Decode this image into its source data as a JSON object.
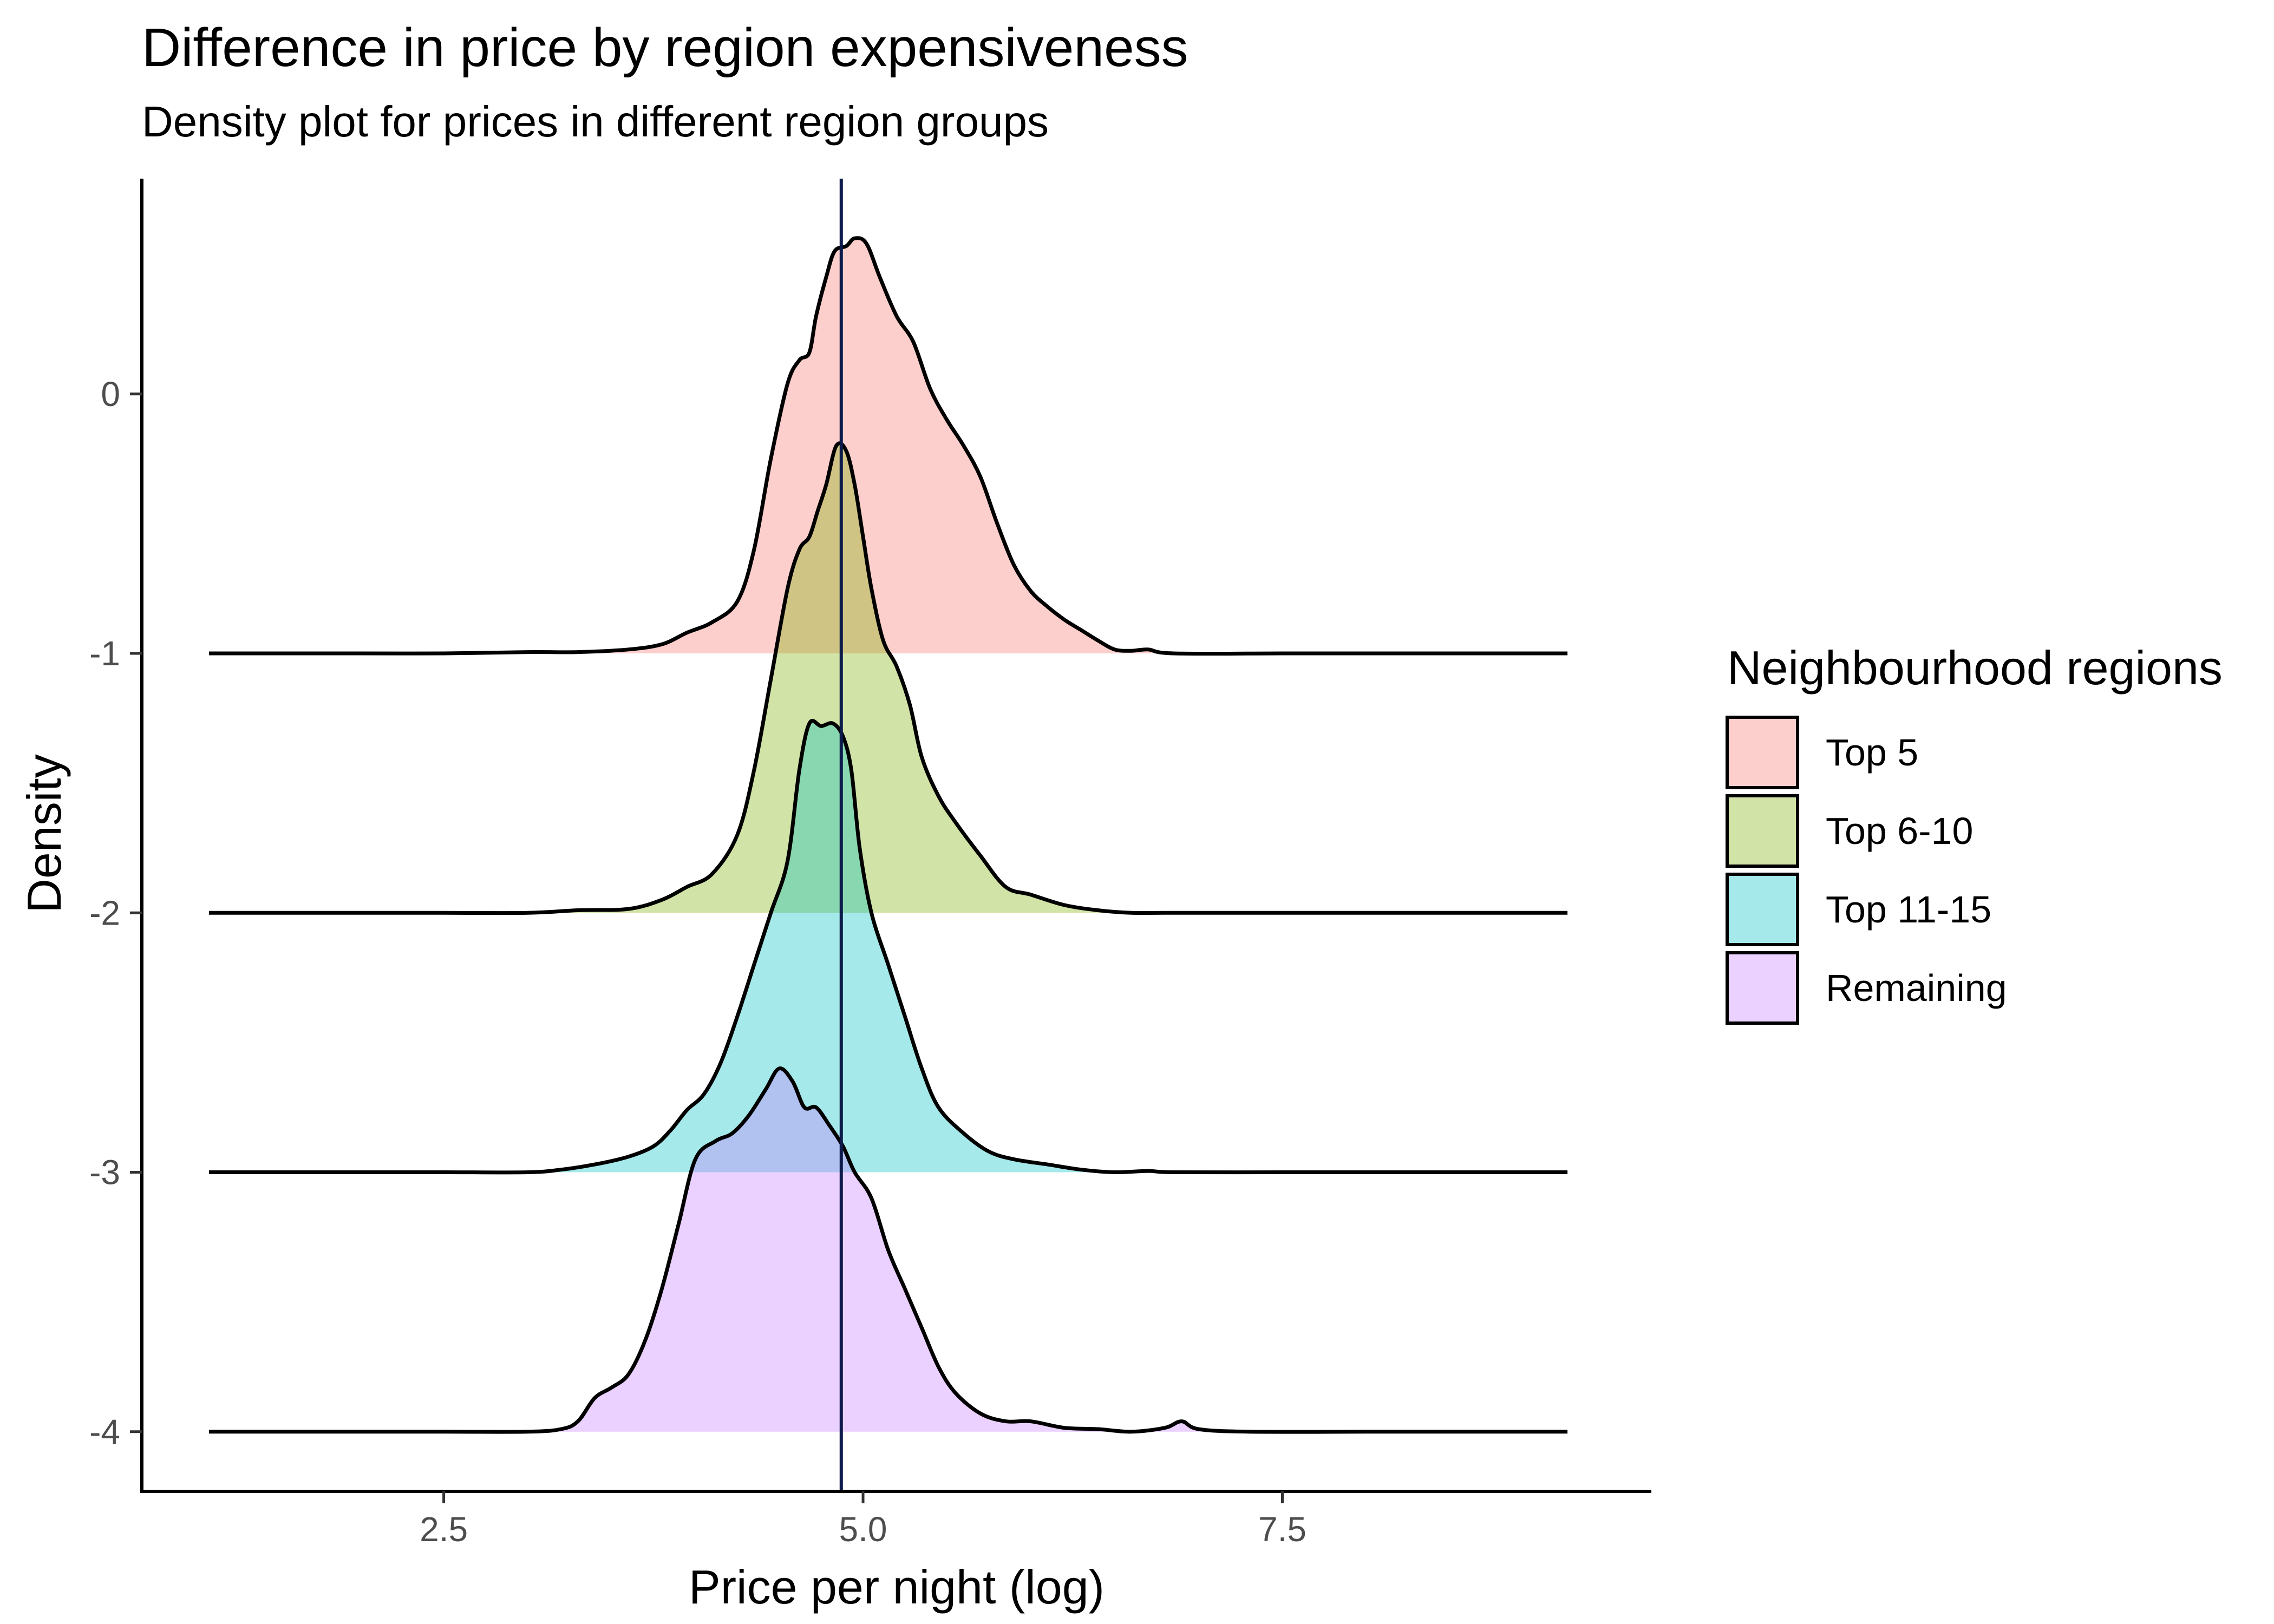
{
  "chart_data": {
    "type": "area",
    "subtype": "ridgeline-density",
    "title": "Difference in price by region expensiveness",
    "subtitle": "Density plot for prices in different region groups",
    "xlabel": "Price per night (log)",
    "ylabel": "Density",
    "xlim": [
      0.7,
      9.7
    ],
    "ylim": [
      -4.23,
      0.83
    ],
    "x_ticks": [
      2.5,
      5.0,
      7.5
    ],
    "x_tick_labels": [
      "2.5",
      "5.0",
      "7.5"
    ],
    "y_ticks": [
      0,
      -1,
      -2,
      -3,
      -4
    ],
    "y_tick_labels": [
      "0",
      "-1",
      "-2",
      "-3",
      "-4"
    ],
    "grid": false,
    "legend_position": "right",
    "legend_title": "Neighbourhood regions",
    "reference_line": {
      "orientation": "vertical",
      "x": 4.87,
      "color": "#0b1a4a"
    },
    "series": [
      {
        "name": "Top 5",
        "baseline": -1,
        "color": "#F8766D",
        "points": [
          [
            1.1,
            -1.0
          ],
          [
            1.5,
            -1.0
          ],
          [
            2.0,
            -1.0
          ],
          [
            2.5,
            -1.0
          ],
          [
            3.0,
            -0.995
          ],
          [
            3.3,
            -0.995
          ],
          [
            3.6,
            -0.985
          ],
          [
            3.8,
            -0.965
          ],
          [
            3.95,
            -0.92
          ],
          [
            4.1,
            -0.88
          ],
          [
            4.25,
            -0.8
          ],
          [
            4.35,
            -0.6
          ],
          [
            4.45,
            -0.25
          ],
          [
            4.55,
            0.04
          ],
          [
            4.62,
            0.13
          ],
          [
            4.68,
            0.16
          ],
          [
            4.72,
            0.3
          ],
          [
            4.78,
            0.45
          ],
          [
            4.83,
            0.55
          ],
          [
            4.9,
            0.57
          ],
          [
            4.95,
            0.6
          ],
          [
            5.02,
            0.58
          ],
          [
            5.1,
            0.45
          ],
          [
            5.2,
            0.3
          ],
          [
            5.3,
            0.2
          ],
          [
            5.4,
            0.02
          ],
          [
            5.5,
            -0.1
          ],
          [
            5.6,
            -0.2
          ],
          [
            5.7,
            -0.32
          ],
          [
            5.8,
            -0.5
          ],
          [
            5.9,
            -0.66
          ],
          [
            6.0,
            -0.76
          ],
          [
            6.1,
            -0.82
          ],
          [
            6.2,
            -0.87
          ],
          [
            6.3,
            -0.91
          ],
          [
            6.4,
            -0.95
          ],
          [
            6.5,
            -0.985
          ],
          [
            6.6,
            -0.99
          ],
          [
            6.7,
            -0.985
          ],
          [
            6.85,
            -1.0
          ],
          [
            7.5,
            -1.0
          ],
          [
            8.0,
            -1.0
          ],
          [
            8.5,
            -1.0
          ],
          [
            9.2,
            -1.0
          ]
        ]
      },
      {
        "name": "Top 6-10",
        "baseline": -2,
        "color": "#7CAE00",
        "points": [
          [
            1.1,
            -2.0
          ],
          [
            1.5,
            -2.0
          ],
          [
            2.0,
            -2.0
          ],
          [
            2.5,
            -2.0
          ],
          [
            3.0,
            -2.0
          ],
          [
            3.3,
            -1.99
          ],
          [
            3.6,
            -1.985
          ],
          [
            3.8,
            -1.95
          ],
          [
            3.95,
            -1.9
          ],
          [
            4.1,
            -1.85
          ],
          [
            4.25,
            -1.7
          ],
          [
            4.35,
            -1.45
          ],
          [
            4.45,
            -1.1
          ],
          [
            4.55,
            -0.75
          ],
          [
            4.62,
            -0.6
          ],
          [
            4.68,
            -0.55
          ],
          [
            4.73,
            -0.45
          ],
          [
            4.78,
            -0.35
          ],
          [
            4.84,
            -0.2
          ],
          [
            4.9,
            -0.22
          ],
          [
            4.95,
            -0.35
          ],
          [
            5.0,
            -0.55
          ],
          [
            5.05,
            -0.75
          ],
          [
            5.12,
            -0.95
          ],
          [
            5.2,
            -1.05
          ],
          [
            5.28,
            -1.2
          ],
          [
            5.35,
            -1.4
          ],
          [
            5.45,
            -1.55
          ],
          [
            5.55,
            -1.65
          ],
          [
            5.7,
            -1.78
          ],
          [
            5.85,
            -1.9
          ],
          [
            6.0,
            -1.93
          ],
          [
            6.2,
            -1.97
          ],
          [
            6.4,
            -1.99
          ],
          [
            6.6,
            -2.0
          ],
          [
            6.8,
            -2.0
          ],
          [
            7.5,
            -2.0
          ],
          [
            8.0,
            -2.0
          ],
          [
            8.5,
            -2.0
          ],
          [
            9.2,
            -2.0
          ]
        ]
      },
      {
        "name": "Top 11-15",
        "baseline": -3,
        "color": "#00BFC4",
        "points": [
          [
            1.1,
            -3.0
          ],
          [
            1.5,
            -3.0
          ],
          [
            2.0,
            -3.0
          ],
          [
            2.5,
            -3.0
          ],
          [
            3.0,
            -3.0
          ],
          [
            3.2,
            -2.99
          ],
          [
            3.4,
            -2.97
          ],
          [
            3.6,
            -2.94
          ],
          [
            3.75,
            -2.9
          ],
          [
            3.85,
            -2.84
          ],
          [
            3.95,
            -2.76
          ],
          [
            4.05,
            -2.7
          ],
          [
            4.15,
            -2.58
          ],
          [
            4.25,
            -2.4
          ],
          [
            4.35,
            -2.2
          ],
          [
            4.45,
            -2.0
          ],
          [
            4.55,
            -1.8
          ],
          [
            4.62,
            -1.45
          ],
          [
            4.68,
            -1.27
          ],
          [
            4.75,
            -1.28
          ],
          [
            4.82,
            -1.27
          ],
          [
            4.88,
            -1.32
          ],
          [
            4.93,
            -1.45
          ],
          [
            4.98,
            -1.75
          ],
          [
            5.05,
            -2.0
          ],
          [
            5.15,
            -2.2
          ],
          [
            5.25,
            -2.4
          ],
          [
            5.35,
            -2.6
          ],
          [
            5.45,
            -2.75
          ],
          [
            5.6,
            -2.85
          ],
          [
            5.75,
            -2.92
          ],
          [
            5.9,
            -2.95
          ],
          [
            6.1,
            -2.97
          ],
          [
            6.3,
            -2.99
          ],
          [
            6.5,
            -3.0
          ],
          [
            6.7,
            -2.995
          ],
          [
            6.85,
            -3.0
          ],
          [
            7.5,
            -3.0
          ],
          [
            8.0,
            -3.0
          ],
          [
            8.5,
            -3.0
          ],
          [
            9.2,
            -3.0
          ]
        ]
      },
      {
        "name": "Remaining",
        "baseline": -4,
        "color": "#C77CFF",
        "points": [
          [
            1.1,
            -4.0
          ],
          [
            1.5,
            -4.0
          ],
          [
            2.0,
            -4.0
          ],
          [
            2.5,
            -4.0
          ],
          [
            3.0,
            -4.0
          ],
          [
            3.2,
            -3.99
          ],
          [
            3.3,
            -3.96
          ],
          [
            3.4,
            -3.87
          ],
          [
            3.5,
            -3.83
          ],
          [
            3.6,
            -3.78
          ],
          [
            3.7,
            -3.65
          ],
          [
            3.8,
            -3.45
          ],
          [
            3.9,
            -3.2
          ],
          [
            4.0,
            -2.95
          ],
          [
            4.12,
            -2.88
          ],
          [
            4.22,
            -2.85
          ],
          [
            4.32,
            -2.78
          ],
          [
            4.42,
            -2.68
          ],
          [
            4.5,
            -2.6
          ],
          [
            4.58,
            -2.65
          ],
          [
            4.65,
            -2.75
          ],
          [
            4.72,
            -2.75
          ],
          [
            4.8,
            -2.82
          ],
          [
            4.88,
            -2.9
          ],
          [
            4.95,
            -3.0
          ],
          [
            5.05,
            -3.1
          ],
          [
            5.15,
            -3.3
          ],
          [
            5.25,
            -3.45
          ],
          [
            5.35,
            -3.6
          ],
          [
            5.45,
            -3.75
          ],
          [
            5.55,
            -3.85
          ],
          [
            5.7,
            -3.93
          ],
          [
            5.85,
            -3.96
          ],
          [
            6.0,
            -3.96
          ],
          [
            6.2,
            -3.985
          ],
          [
            6.4,
            -3.99
          ],
          [
            6.6,
            -4.0
          ],
          [
            6.8,
            -3.985
          ],
          [
            6.9,
            -3.96
          ],
          [
            7.0,
            -3.99
          ],
          [
            7.3,
            -4.0
          ],
          [
            8.0,
            -4.0
          ],
          [
            8.5,
            -4.0
          ],
          [
            9.2,
            -4.0
          ]
        ]
      }
    ]
  }
}
